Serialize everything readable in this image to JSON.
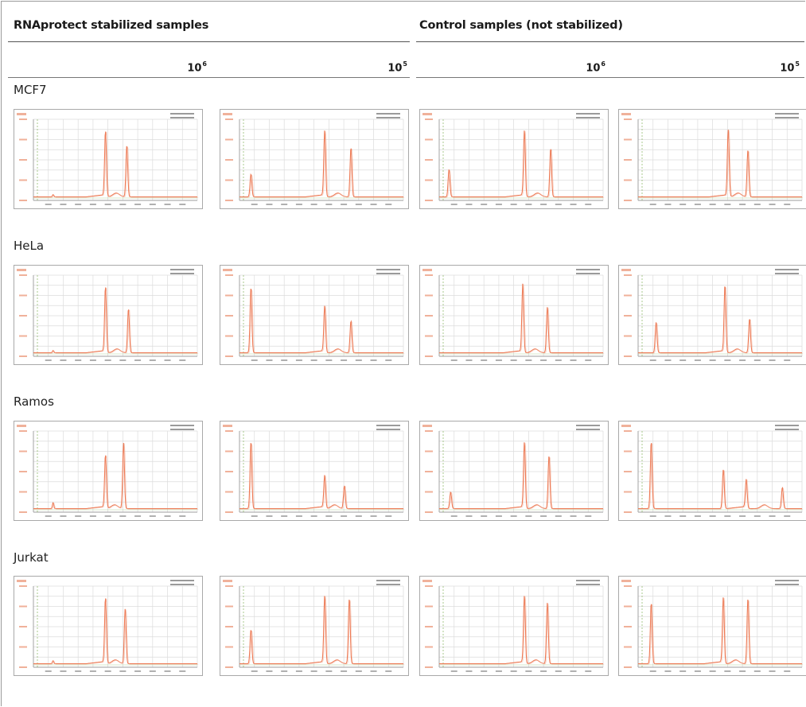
{
  "groups": {
    "stabilized": {
      "title": "RNAprotect stabilized samples"
    },
    "control": {
      "title": "Control samples (not stabilized)"
    }
  },
  "columns": {
    "c1": {
      "base": "10",
      "exp": "6"
    },
    "c2": {
      "base": "10",
      "exp": "5"
    },
    "c3": {
      "base": "10",
      "exp": "6"
    },
    "c4": {
      "base": "10",
      "exp": "5"
    }
  },
  "rows": {
    "r0": {
      "label": "MCF7"
    },
    "r1": {
      "label": "HeLa"
    },
    "r2": {
      "label": "Ramos"
    },
    "r3": {
      "label": "Jurkat"
    }
  },
  "colors": {
    "trace": "#ee7a55",
    "trace_dim": "#f0b19a",
    "grid": "#dcdcdc",
    "ladder": "#86b35f"
  },
  "chart_data": [
    {
      "type": "line",
      "row": "MCF7",
      "column": "RNAprotect stabilized samples, 10^6",
      "peaks": [
        {
          "x": 0.12,
          "h": 0.03
        },
        {
          "x": 0.44,
          "h": 0.86
        },
        {
          "x": 0.57,
          "h": 0.68
        }
      ]
    },
    {
      "type": "line",
      "row": "MCF7",
      "column": "RNAprotect stabilized samples, 10^5",
      "peaks": [
        {
          "x": 0.07,
          "h": 0.3
        },
        {
          "x": 0.52,
          "h": 0.86
        },
        {
          "x": 0.68,
          "h": 0.65
        }
      ]
    },
    {
      "type": "line",
      "row": "MCF7",
      "column": "Control samples (not stabilized), 10^6",
      "peaks": [
        {
          "x": 0.06,
          "h": 0.36
        },
        {
          "x": 0.52,
          "h": 0.86
        },
        {
          "x": 0.68,
          "h": 0.64
        }
      ]
    },
    {
      "type": "line",
      "row": "MCF7",
      "column": "Control samples (not stabilized), 10^5",
      "peaks": [
        {
          "x": 0.55,
          "h": 0.88
        },
        {
          "x": 0.67,
          "h": 0.62
        }
      ]
    },
    {
      "type": "line",
      "row": "HeLa",
      "column": "RNAprotect stabilized samples, 10^6",
      "peaks": [
        {
          "x": 0.12,
          "h": 0.03
        },
        {
          "x": 0.44,
          "h": 0.86
        },
        {
          "x": 0.58,
          "h": 0.58
        }
      ]
    },
    {
      "type": "line",
      "row": "HeLa",
      "column": "RNAprotect stabilized samples, 10^5",
      "peaks": [
        {
          "x": 0.07,
          "h": 0.86
        },
        {
          "x": 0.52,
          "h": 0.6
        },
        {
          "x": 0.68,
          "h": 0.42
        }
      ]
    },
    {
      "type": "line",
      "row": "HeLa",
      "column": "Control samples (not stabilized), 10^6",
      "peaks": [
        {
          "x": 0.51,
          "h": 0.88
        },
        {
          "x": 0.66,
          "h": 0.6
        }
      ]
    },
    {
      "type": "line",
      "row": "HeLa",
      "column": "Control samples (not stabilized), 10^5",
      "peaks": [
        {
          "x": 0.11,
          "h": 0.4
        },
        {
          "x": 0.53,
          "h": 0.88
        },
        {
          "x": 0.68,
          "h": 0.45
        }
      ]
    },
    {
      "type": "line",
      "row": "Ramos",
      "column": "RNAprotect stabilized samples, 10^6",
      "peaks": [
        {
          "x": 0.12,
          "h": 0.08
        },
        {
          "x": 0.44,
          "h": 0.7
        },
        {
          "x": 0.55,
          "h": 0.86
        }
      ]
    },
    {
      "type": "line",
      "row": "Ramos",
      "column": "RNAprotect stabilized samples, 10^5",
      "peaks": [
        {
          "x": 0.07,
          "h": 0.88
        },
        {
          "x": 0.52,
          "h": 0.42
        },
        {
          "x": 0.64,
          "h": 0.3
        }
      ]
    },
    {
      "type": "line",
      "row": "Ramos",
      "column": "Control samples (not stabilized), 10^6",
      "peaks": [
        {
          "x": 0.07,
          "h": 0.22
        },
        {
          "x": 0.52,
          "h": 0.86
        },
        {
          "x": 0.67,
          "h": 0.7
        }
      ]
    },
    {
      "type": "line",
      "row": "Ramos",
      "column": "Control samples (not stabilized), 10^5",
      "peaks": [
        {
          "x": 0.08,
          "h": 0.88
        },
        {
          "x": 0.52,
          "h": 0.52
        },
        {
          "x": 0.66,
          "h": 0.36
        },
        {
          "x": 0.88,
          "h": 0.28
        }
      ]
    },
    {
      "type": "line",
      "row": "Jurkat",
      "column": "RNAprotect stabilized samples, 10^6",
      "peaks": [
        {
          "x": 0.12,
          "h": 0.04
        },
        {
          "x": 0.44,
          "h": 0.86
        },
        {
          "x": 0.56,
          "h": 0.72
        }
      ]
    },
    {
      "type": "line",
      "row": "Jurkat",
      "column": "RNAprotect stabilized samples, 10^5",
      "peaks": [
        {
          "x": 0.07,
          "h": 0.45
        },
        {
          "x": 0.52,
          "h": 0.88
        },
        {
          "x": 0.67,
          "h": 0.86
        }
      ]
    },
    {
      "type": "line",
      "row": "Jurkat",
      "column": "Control samples (not stabilized), 10^6",
      "peaks": [
        {
          "x": 0.52,
          "h": 0.88
        },
        {
          "x": 0.66,
          "h": 0.8
        }
      ]
    },
    {
      "type": "line",
      "row": "Jurkat",
      "column": "Control samples (not stabilized), 10^5",
      "peaks": [
        {
          "x": 0.08,
          "h": 0.8
        },
        {
          "x": 0.52,
          "h": 0.86
        },
        {
          "x": 0.67,
          "h": 0.86
        }
      ]
    }
  ]
}
